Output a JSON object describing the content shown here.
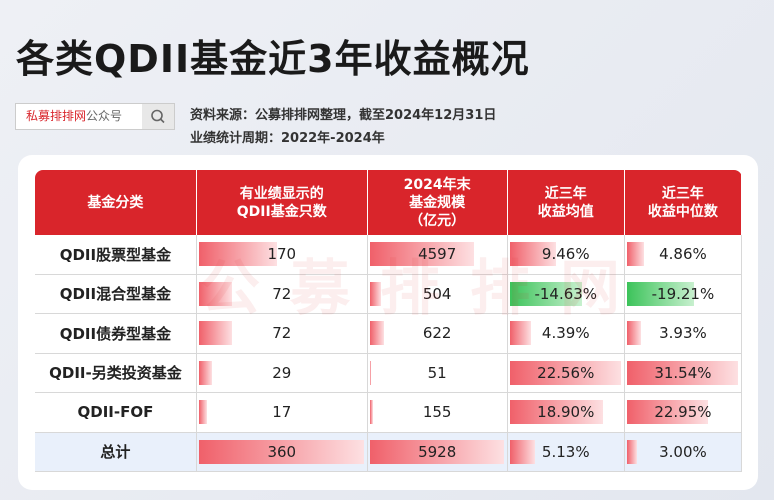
{
  "header": {
    "title": "各类QDII基金近3年收益概况",
    "search_brand": "私募排排网",
    "search_suffix": "公众号",
    "source": "资料来源：公募排排网整理，截至2024年12月31日",
    "period": "业绩统计周期：2022年-2024年"
  },
  "watermark": "公募排排网",
  "table": {
    "columns": [
      "基金分类",
      "有业绩显示的\nQDII基金只数",
      "2024年末\n基金规模\n（亿元）",
      "近三年\n收益均值",
      "近三年\n收益中位数"
    ],
    "rows": [
      [
        "QDII股票型基金",
        170,
        4597,
        {
          "value": 9.46,
          "label": "9.46%"
        },
        {
          "value": 4.86,
          "label": "4.86%"
        }
      ],
      [
        "QDII混合型基金",
        72,
        504,
        {
          "value": -14.63,
          "label": "-14.63%"
        },
        {
          "value": -19.21,
          "label": "-19.21%"
        }
      ],
      [
        "QDII债券型基金",
        72,
        622,
        {
          "value": 4.39,
          "label": "4.39%"
        },
        {
          "value": 3.93,
          "label": "3.93%"
        }
      ],
      [
        "QDII-另类投资基金",
        29,
        51,
        {
          "value": 22.56,
          "label": "22.56%"
        },
        {
          "value": 31.54,
          "label": "31.54%"
        }
      ],
      [
        "QDII-FOF",
        17,
        155,
        {
          "value": 18.9,
          "label": "18.90%"
        },
        {
          "value": 22.95,
          "label": "22.95%"
        }
      ],
      [
        "总计",
        360,
        5928,
        {
          "value": 5.13,
          "label": "5.13%"
        },
        {
          "value": 3.0,
          "label": "3.00%"
        }
      ]
    ]
  }
}
